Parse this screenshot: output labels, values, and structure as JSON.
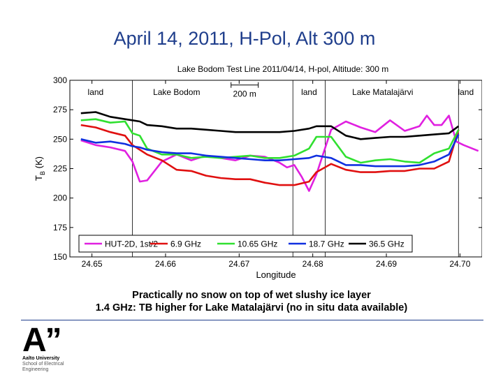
{
  "slide": {
    "title": "April 14, 2011, H-Pol, Alt 300 m",
    "caption_line1": "Practically no snow on top of wet slushy ice layer",
    "caption_line2": "1.4 GHz: TB higher for Lake Matalajärvi (no in situ data available)"
  },
  "logo": {
    "mark": "A”",
    "university": "Aalto University",
    "school_line1": "School of Electrical",
    "school_line2": "Engineering"
  },
  "chart_data": {
    "type": "line",
    "title": "Lake Bodom Test Line 2011/04/14, H-pol, Altitude: 300 m",
    "xlabel": "Longitude",
    "ylabel": "T_B (K)",
    "ylabel_main": "T",
    "ylabel_sub": "B",
    "ylabel_unit": "(K)",
    "xlim": [
      24.647,
      24.703
    ],
    "ylim": [
      150,
      300
    ],
    "xticks": [
      24.65,
      24.66,
      24.67,
      24.68,
      24.69,
      24.7
    ],
    "xtick_labels": [
      "24.65",
      "24.66",
      "24.67",
      "24.68",
      "24.69",
      "24.70"
    ],
    "yticks": [
      150,
      175,
      200,
      225,
      250,
      275,
      300
    ],
    "ytick_labels": [
      "150",
      "175",
      "200",
      "225",
      "250",
      "275",
      "300"
    ],
    "vlines": [
      24.6555,
      24.6773,
      24.6817,
      24.6998
    ],
    "region_labels": [
      {
        "text": "land",
        "x": 24.6505
      },
      {
        "text": "Lake Bodom",
        "x": 24.6615
      },
      {
        "text": "land",
        "x": 24.6795
      },
      {
        "text": "Lake Matalajärvi",
        "x": 24.6895
      },
      {
        "text": "land",
        "x": 24.7008
      }
    ],
    "scale_bar": {
      "label": "200 m",
      "x_start": 24.6689,
      "x_end": 24.6726,
      "y": 296
    },
    "legend_position": "bottom",
    "series": [
      {
        "name": "HUT-2D, 1st/2",
        "color": "#e020e0",
        "x": [
          24.6485,
          24.6505,
          24.6525,
          24.6545,
          24.6555,
          24.6565,
          24.6575,
          24.6595,
          24.6615,
          24.6635,
          24.6655,
          24.6675,
          24.6695,
          24.6715,
          24.6735,
          24.6755,
          24.6765,
          24.6775,
          24.6785,
          24.6795,
          24.6805,
          24.6825,
          24.6845,
          24.6865,
          24.6885,
          24.6905,
          24.6925,
          24.6945,
          24.6955,
          24.6965,
          24.6975,
          24.6985,
          24.6995,
          24.7005,
          24.7025
        ],
        "values": [
          249,
          245,
          243,
          240,
          231,
          214,
          215,
          231,
          237,
          232,
          236,
          234,
          232,
          236,
          235,
          230,
          226,
          228,
          218,
          206,
          220,
          258,
          265,
          260,
          256,
          266,
          257,
          261,
          270,
          262,
          262,
          270,
          248,
          245,
          240
        ]
      },
      {
        "name": "6.9 GHz",
        "color": "#e01010",
        "x": [
          24.6485,
          24.6505,
          24.6525,
          24.6545,
          24.6555,
          24.6565,
          24.6575,
          24.6595,
          24.6615,
          24.6635,
          24.6655,
          24.6675,
          24.6695,
          24.6715,
          24.6735,
          24.6755,
          24.6775,
          24.6795,
          24.6805,
          24.6825,
          24.6845,
          24.6865,
          24.6885,
          24.6905,
          24.6925,
          24.6945,
          24.6965,
          24.6985,
          24.6998
        ],
        "values": [
          262,
          260,
          256,
          253,
          245,
          241,
          237,
          232,
          224,
          223,
          219,
          217,
          216,
          216,
          213,
          211,
          211,
          214,
          222,
          229,
          224,
          222,
          222,
          223,
          223,
          225,
          225,
          231,
          258
        ]
      },
      {
        "name": "10.65 GHz",
        "color": "#30e030",
        "x": [
          24.6485,
          24.6505,
          24.6525,
          24.6545,
          24.6555,
          24.6565,
          24.6575,
          24.6595,
          24.6615,
          24.6635,
          24.6655,
          24.6675,
          24.6695,
          24.6715,
          24.6735,
          24.6755,
          24.6775,
          24.6795,
          24.6805,
          24.6825,
          24.6845,
          24.6865,
          24.6885,
          24.6905,
          24.6925,
          24.6945,
          24.6965,
          24.6985,
          24.6998
        ],
        "values": [
          266,
          267,
          264,
          265,
          255,
          253,
          242,
          237,
          237,
          234,
          235,
          234,
          235,
          236,
          234,
          234,
          236,
          242,
          252,
          252,
          235,
          230,
          232,
          233,
          231,
          230,
          238,
          242,
          258
        ]
      },
      {
        "name": "18.7 GHz",
        "color": "#1030e0",
        "x": [
          24.6485,
          24.6505,
          24.6525,
          24.6545,
          24.6555,
          24.6565,
          24.6575,
          24.6595,
          24.6615,
          24.6635,
          24.6655,
          24.6675,
          24.6695,
          24.6715,
          24.6735,
          24.6755,
          24.6775,
          24.6795,
          24.6805,
          24.6825,
          24.6845,
          24.6865,
          24.6885,
          24.6905,
          24.6925,
          24.6945,
          24.6965,
          24.6985,
          24.6998
        ],
        "values": [
          250,
          247,
          248,
          246,
          244,
          243,
          241,
          239,
          238,
          238,
          236,
          235,
          234,
          233,
          232,
          232,
          233,
          234,
          236,
          234,
          228,
          228,
          227,
          227,
          227,
          228,
          231,
          237,
          254
        ]
      },
      {
        "name": "36.5 GHz",
        "color": "#000000",
        "x": [
          24.6485,
          24.6505,
          24.6525,
          24.6545,
          24.6555,
          24.6565,
          24.6575,
          24.6595,
          24.6615,
          24.6635,
          24.6655,
          24.6675,
          24.6695,
          24.6715,
          24.6735,
          24.6755,
          24.6775,
          24.6795,
          24.6805,
          24.6825,
          24.6845,
          24.6865,
          24.6885,
          24.6905,
          24.6925,
          24.6945,
          24.6965,
          24.6985,
          24.6998
        ],
        "values": [
          272,
          273,
          269,
          267,
          266,
          265,
          262,
          261,
          259,
          259,
          258,
          257,
          256,
          256,
          256,
          256,
          257,
          259,
          261,
          261,
          253,
          250,
          251,
          252,
          252,
          253,
          254,
          255,
          261
        ]
      }
    ]
  }
}
